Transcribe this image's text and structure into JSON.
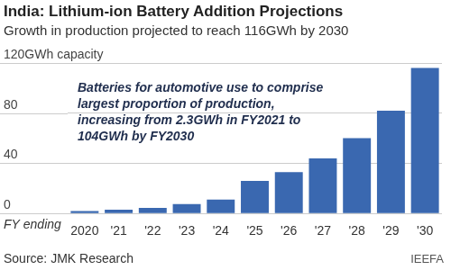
{
  "chart_data": {
    "type": "bar",
    "title": "India: Lithium-ion Battery Addition Projections",
    "subtitle": "Growth in production projected to reach 116GWh by 2030",
    "xlabel": "FY ending",
    "categories": [
      "2020",
      "'21",
      "'22",
      "'23",
      "'24",
      "'25",
      "'26",
      "'27",
      "'28",
      "'29",
      "'30"
    ],
    "values": [
      2,
      3,
      4.5,
      7.5,
      11,
      26,
      33,
      44,
      60,
      82,
      116
    ],
    "color": "#3a68b0",
    "ylim": [
      0,
      120
    ],
    "yticks": [
      0,
      40,
      80,
      {
        "value": 120,
        "label": "120GWh capacity"
      }
    ],
    "grid": true,
    "annotation": [
      "Batteries for automotive use to comprise",
      "largest proportion of production,",
      "increasing from 2.3GWh in FY2021 to",
      "104GWh by FY2030"
    ],
    "source": "Source: JMK Research",
    "credit": "IEEFA"
  }
}
